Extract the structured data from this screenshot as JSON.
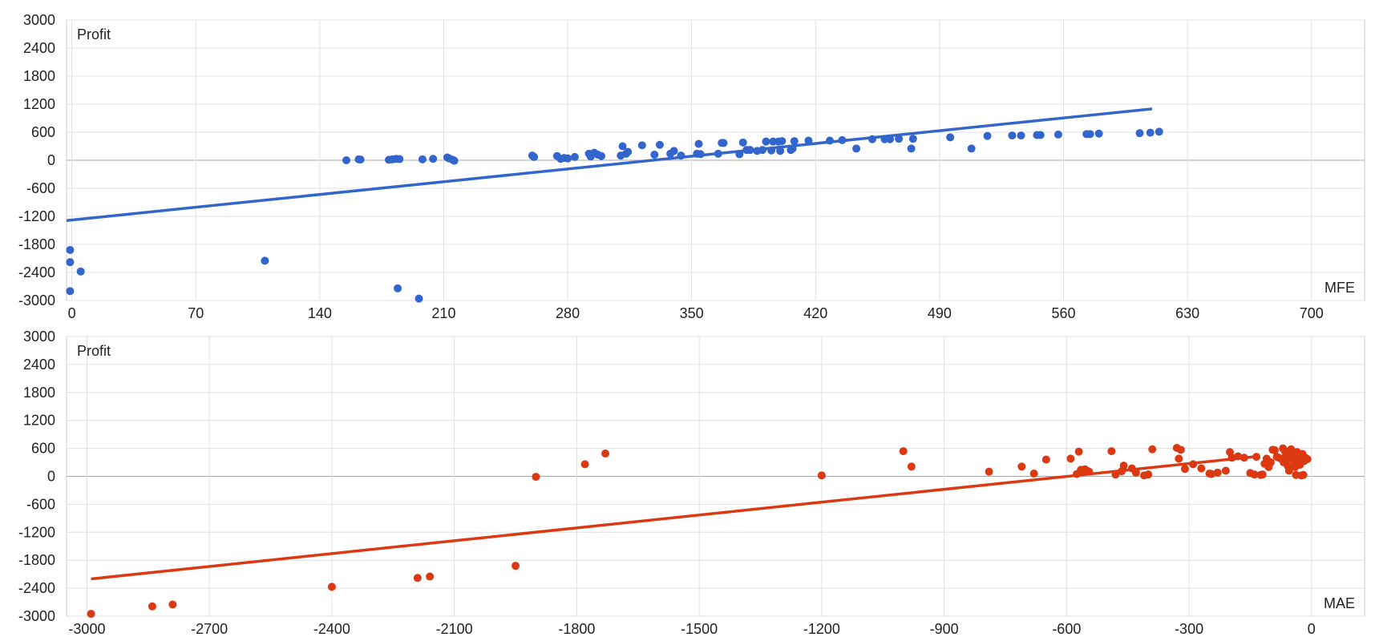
{
  "chart_data": [
    {
      "type": "scatter",
      "title": "",
      "ylabel": "Profit",
      "xlabel": "MFE",
      "grid": true,
      "xlim": [
        -3,
        730
      ],
      "ylim": [
        -3000,
        3000
      ],
      "xticks": [
        "0",
        "70",
        "140",
        "210",
        "280",
        "350",
        "420",
        "490",
        "560",
        "630",
        "700"
      ],
      "yticks": [
        "3000",
        "2400",
        "1800",
        "1200",
        "600",
        "0",
        "-600",
        "-1200",
        "-1800",
        "-2400",
        "-3000"
      ],
      "trendline": {
        "x": [
          -3,
          610
        ],
        "y": [
          -1290,
          1100
        ]
      },
      "colors": {
        "points": "#3366cc",
        "trendline": "#3366cc"
      },
      "points": [
        [
          -1,
          -1920
        ],
        [
          -1,
          -2180
        ],
        [
          -1,
          -2800
        ],
        [
          5,
          -2380
        ],
        [
          109,
          -2150
        ],
        [
          184,
          -2740
        ],
        [
          196,
          -2960
        ],
        [
          155,
          0
        ],
        [
          162,
          20
        ],
        [
          163,
          15
        ],
        [
          179,
          10
        ],
        [
          181,
          20
        ],
        [
          183,
          30
        ],
        [
          185,
          25
        ],
        [
          198,
          20
        ],
        [
          204,
          30
        ],
        [
          212,
          60
        ],
        [
          213,
          40
        ],
        [
          215,
          10
        ],
        [
          216,
          -10
        ],
        [
          260,
          100
        ],
        [
          261,
          70
        ],
        [
          274,
          90
        ],
        [
          276,
          30
        ],
        [
          278,
          50
        ],
        [
          280,
          40
        ],
        [
          284,
          70
        ],
        [
          292,
          140
        ],
        [
          293,
          80
        ],
        [
          295,
          160
        ],
        [
          297,
          120
        ],
        [
          299,
          90
        ],
        [
          310,
          100
        ],
        [
          311,
          300
        ],
        [
          313,
          140
        ],
        [
          314,
          180
        ],
        [
          322,
          320
        ],
        [
          329,
          120
        ],
        [
          332,
          330
        ],
        [
          338,
          140
        ],
        [
          340,
          200
        ],
        [
          344,
          100
        ],
        [
          353,
          140
        ],
        [
          354,
          350
        ],
        [
          355,
          130
        ],
        [
          365,
          140
        ],
        [
          367,
          370
        ],
        [
          368,
          370
        ],
        [
          377,
          130
        ],
        [
          379,
          380
        ],
        [
          381,
          220
        ],
        [
          383,
          220
        ],
        [
          387,
          200
        ],
        [
          390,
          220
        ],
        [
          392,
          400
        ],
        [
          395,
          210
        ],
        [
          396,
          400
        ],
        [
          399,
          400
        ],
        [
          400,
          200
        ],
        [
          401,
          410
        ],
        [
          406,
          220
        ],
        [
          407,
          250
        ],
        [
          408,
          410
        ],
        [
          416,
          420
        ],
        [
          428,
          420
        ],
        [
          435,
          430
        ],
        [
          443,
          250
        ],
        [
          452,
          450
        ],
        [
          459,
          450
        ],
        [
          462,
          450
        ],
        [
          467,
          460
        ],
        [
          474,
          250
        ],
        [
          475,
          460
        ],
        [
          496,
          490
        ],
        [
          508,
          250
        ],
        [
          517,
          520
        ],
        [
          531,
          530
        ],
        [
          536,
          530
        ],
        [
          545,
          540
        ],
        [
          547,
          540
        ],
        [
          557,
          550
        ],
        [
          573,
          560
        ],
        [
          575,
          560
        ],
        [
          580,
          570
        ],
        [
          603,
          580
        ],
        [
          609,
          590
        ],
        [
          614,
          610
        ]
      ]
    },
    {
      "type": "scatter",
      "title": "",
      "ylabel": "Profit",
      "xlabel": "MAE",
      "grid": true,
      "xlim": [
        -3050,
        130
      ],
      "ylim": [
        -3000,
        3000
      ],
      "xticks": [
        "-3000",
        "-2700",
        "-2400",
        "-2100",
        "-1800",
        "-1500",
        "-1200",
        "-900",
        "-600",
        "-300",
        "0"
      ],
      "yticks": [
        "3000",
        "2400",
        "1800",
        "1200",
        "600",
        "0",
        "-600",
        "-1200",
        "-1800",
        "-2400",
        "-3000"
      ],
      "trendline": {
        "x": [
          -2990,
          -130
        ],
        "y": [
          -2200,
          430
        ]
      },
      "colors": {
        "points": "#dc3912",
        "trendline": "#dc3912"
      },
      "points": [
        [
          -2990,
          -2950
        ],
        [
          -2840,
          -2790
        ],
        [
          -2790,
          -2750
        ],
        [
          -2400,
          -2370
        ],
        [
          -2190,
          -2180
        ],
        [
          -2160,
          -2150
        ],
        [
          -1950,
          -1920
        ],
        [
          -1900,
          -10
        ],
        [
          -1780,
          260
        ],
        [
          -1730,
          490
        ],
        [
          -1200,
          20
        ],
        [
          -1000,
          540
        ],
        [
          -980,
          210
        ],
        [
          -790,
          100
        ],
        [
          -710,
          210
        ],
        [
          -680,
          60
        ],
        [
          -650,
          360
        ],
        [
          -590,
          380
        ],
        [
          -575,
          50
        ],
        [
          -570,
          530
        ],
        [
          -565,
          140
        ],
        [
          -560,
          90
        ],
        [
          -555,
          150
        ],
        [
          -550,
          120
        ],
        [
          -545,
          100
        ],
        [
          -490,
          540
        ],
        [
          -480,
          40
        ],
        [
          -465,
          110
        ],
        [
          -460,
          230
        ],
        [
          -440,
          170
        ],
        [
          -430,
          80
        ],
        [
          -410,
          20
        ],
        [
          -400,
          40
        ],
        [
          -390,
          580
        ],
        [
          -330,
          610
        ],
        [
          -325,
          380
        ],
        [
          -320,
          570
        ],
        [
          -310,
          160
        ],
        [
          -290,
          260
        ],
        [
          -270,
          170
        ],
        [
          -250,
          60
        ],
        [
          -245,
          50
        ],
        [
          -230,
          80
        ],
        [
          -210,
          120
        ],
        [
          -200,
          520
        ],
        [
          -195,
          400
        ],
        [
          -180,
          430
        ],
        [
          -165,
          400
        ],
        [
          -150,
          70
        ],
        [
          -140,
          40
        ],
        [
          -135,
          420
        ],
        [
          -125,
          30
        ],
        [
          -120,
          40
        ],
        [
          -115,
          270
        ],
        [
          -110,
          380
        ],
        [
          -105,
          200
        ],
        [
          -100,
          300
        ],
        [
          -95,
          570
        ],
        [
          -90,
          560
        ],
        [
          -85,
          420
        ],
        [
          -80,
          400
        ],
        [
          -75,
          380
        ],
        [
          -70,
          600
        ],
        [
          -68,
          300
        ],
        [
          -65,
          540
        ],
        [
          -62,
          460
        ],
        [
          -60,
          350
        ],
        [
          -58,
          220
        ],
        [
          -55,
          120
        ],
        [
          -52,
          560
        ],
        [
          -50,
          580
        ],
        [
          -48,
          410
        ],
        [
          -45,
          480
        ],
        [
          -42,
          300
        ],
        [
          -40,
          200
        ],
        [
          -38,
          30
        ],
        [
          -35,
          520
        ],
        [
          -32,
          410
        ],
        [
          -30,
          360
        ],
        [
          -28,
          250
        ],
        [
          -25,
          20
        ],
        [
          -22,
          480
        ],
        [
          -20,
          30
        ],
        [
          -18,
          330
        ],
        [
          -15,
          400
        ],
        [
          -10,
          370
        ]
      ]
    }
  ]
}
